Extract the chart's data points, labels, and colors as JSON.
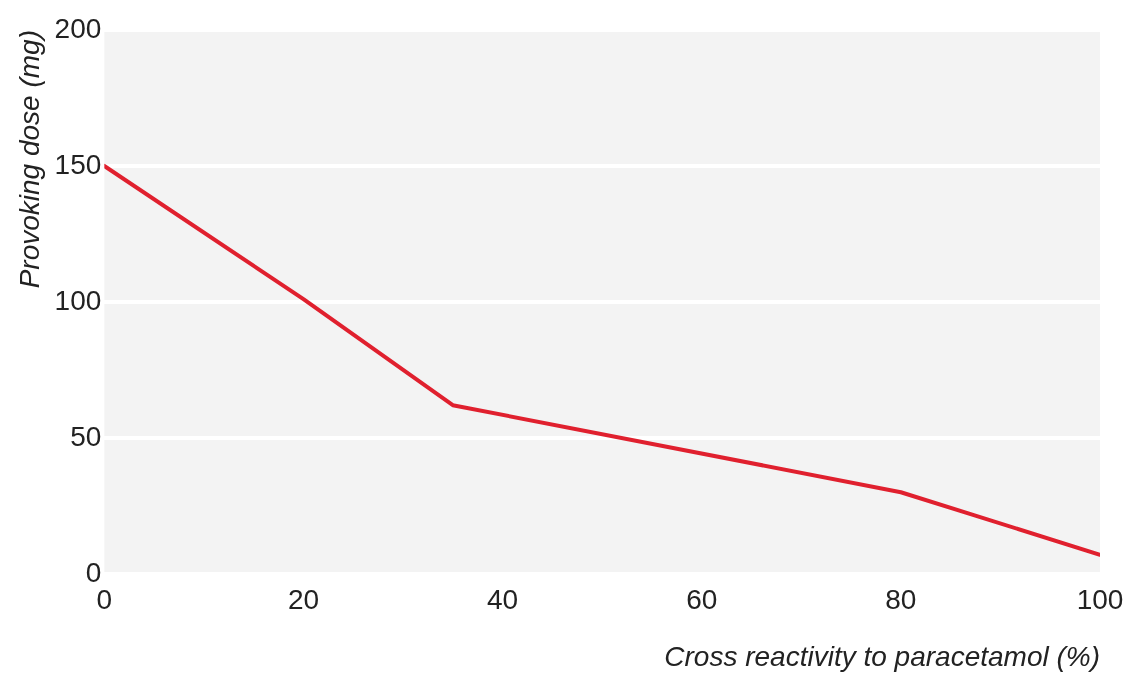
{
  "chart_data": {
    "type": "line",
    "xlabel": "Cross reactivity to paracetamol (%)",
    "ylabel": "Provoking dose (mg)",
    "x": [
      0,
      20,
      35,
      80,
      100
    ],
    "series": [
      {
        "color": "#e0202e",
        "values": [
          150,
          101,
          62,
          30,
          7
        ]
      }
    ],
    "xlim": [
      0,
      100
    ],
    "xticks": [
      0,
      20,
      40,
      60,
      80,
      100
    ],
    "ylim": [
      0,
      200
    ],
    "yticks": [
      0,
      50,
      100,
      150,
      200
    ],
    "grid": "y",
    "legend": false,
    "marker": "none",
    "line_style": "solid"
  }
}
